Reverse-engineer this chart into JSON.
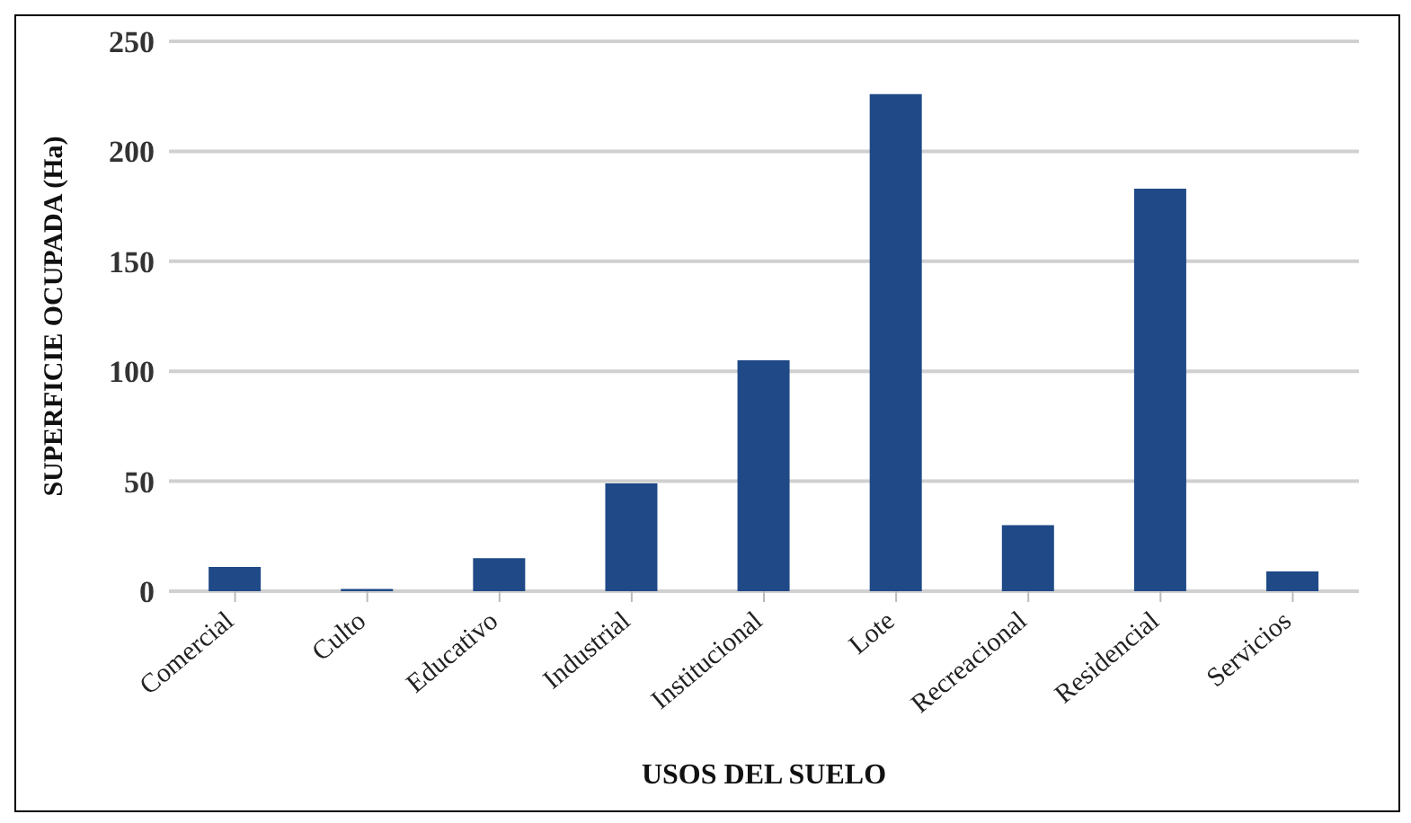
{
  "chart_data": {
    "type": "bar",
    "xlabel": "USOS DEL SUELO",
    "ylabel": "SUPERFICIE OCUPADA (Ha)",
    "categories": [
      "Comercial",
      "Culto",
      "Educativo",
      "Industrial",
      "Institucional",
      "Lote",
      "Recreacional",
      "Residencial",
      "Servicios"
    ],
    "values": [
      11,
      1,
      15,
      49,
      105,
      226,
      30,
      183,
      9
    ],
    "color": "#1f4a87",
    "ylim": [
      0,
      250
    ],
    "yticks": [
      0,
      50,
      100,
      150,
      200,
      250
    ],
    "grid": "y"
  }
}
